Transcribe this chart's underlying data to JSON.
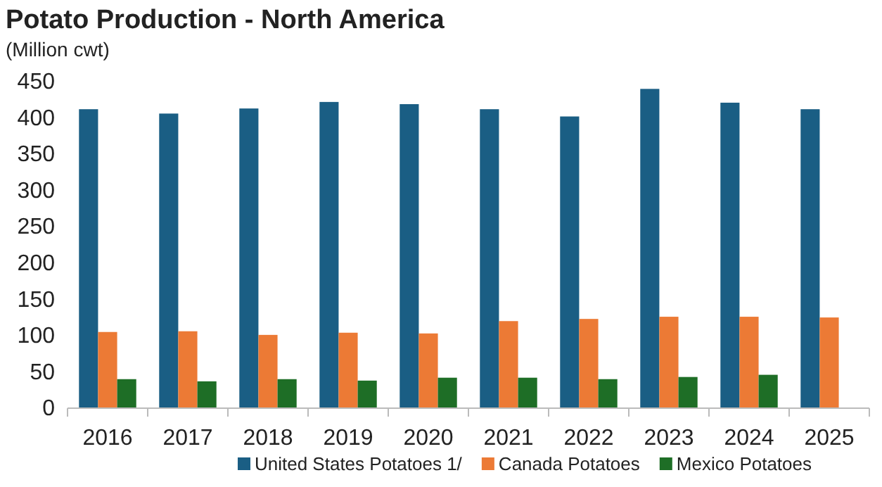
{
  "chart_data": {
    "type": "bar",
    "title": "Potato Production - North America",
    "ylabel": "(Million cwt)",
    "categories": [
      "2016",
      "2017",
      "2018",
      "2019",
      "2020",
      "2021",
      "2022",
      "2023",
      "2024",
      "2025"
    ],
    "series": [
      {
        "name": "United States Potatoes 1/",
        "color": "#1a5e84",
        "values": [
          412,
          406,
          413,
          422,
          419,
          412,
          402,
          440,
          421,
          412
        ]
      },
      {
        "name": "Canada Potatoes",
        "color": "#ec7a35",
        "values": [
          105,
          106,
          101,
          104,
          103,
          120,
          123,
          126,
          126,
          125
        ]
      },
      {
        "name": "Mexico Potatoes",
        "color": "#1e6e26",
        "values": [
          40,
          37,
          40,
          38,
          42,
          42,
          40,
          43,
          46,
          null
        ]
      }
    ],
    "ylim": [
      0,
      450
    ],
    "yticks": [
      0,
      50,
      100,
      150,
      200,
      250,
      300,
      350,
      400,
      450
    ],
    "grid": false,
    "legend": "bottom"
  }
}
